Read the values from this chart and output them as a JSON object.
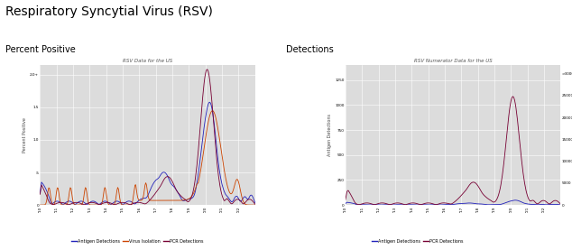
{
  "title": "Respiratory Syncytial Virus (RSV)",
  "left_subtitle": "Percent Positive",
  "right_subtitle": "Detections",
  "left_chart_title": "RSV Data for the US",
  "right_chart_title": "RSV Numerator Data for the US",
  "left_ylabel": "Percent Positive",
  "right_ylabel_left": "Antigen Detections",
  "right_ylabel_right": "PCR Detections",
  "bg_color": "#dcdcdc",
  "line_colors": {
    "antigen": "#2222bb",
    "virus": "#cc4400",
    "pcr": "#770033"
  },
  "legend_left": [
    "Antigen Detections",
    "Virus Isolation",
    "PCR Detections"
  ],
  "legend_right": [
    "Antigen Detections",
    "PCR Detections"
  ],
  "title_fontsize": 10,
  "subtitle_fontsize": 7,
  "chart_title_fontsize": 4,
  "axis_label_fontsize": 3.5,
  "tick_fontsize": 3,
  "legend_fontsize": 3.5
}
